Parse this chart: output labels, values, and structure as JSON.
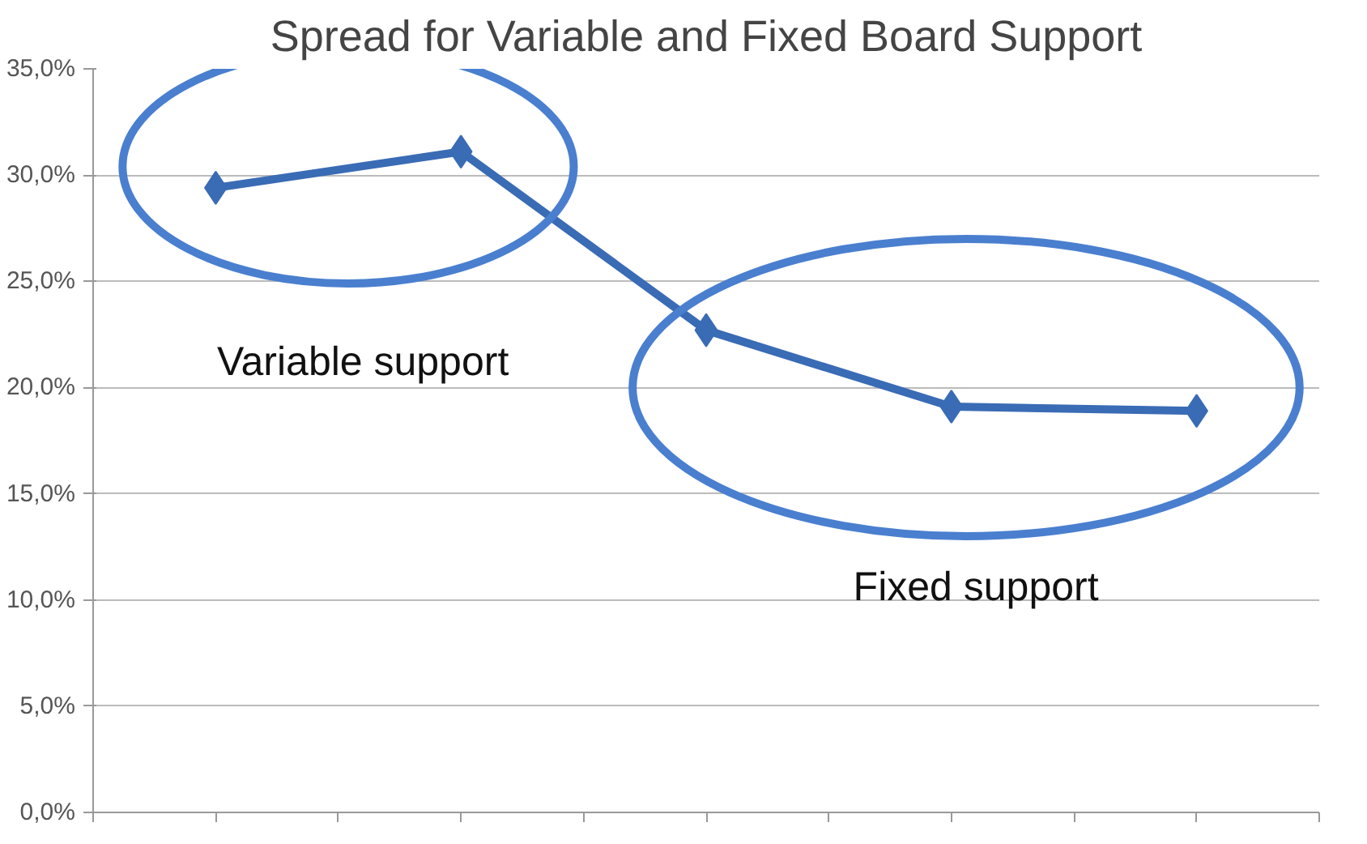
{
  "chart_data": {
    "type": "line",
    "title": "Spread for Variable and Fixed Board Support",
    "categories": [
      null,
      null,
      null,
      null,
      null
    ],
    "series": [
      {
        "color": "#3a6bb5",
        "values": [
          29.4,
          31.1,
          22.7,
          19.1,
          18.9
        ]
      }
    ],
    "ylim": [
      0,
      35
    ],
    "yticks": [
      {
        "value": 0,
        "label": "0,0%"
      },
      {
        "value": 5,
        "label": "5,0%"
      },
      {
        "value": 10,
        "label": "10,0%"
      },
      {
        "value": 15,
        "label": "15,0%"
      },
      {
        "value": 20,
        "label": "20,0%"
      },
      {
        "value": 25,
        "label": "25,0%"
      },
      {
        "value": 30,
        "label": "30,0%"
      },
      {
        "value": 35,
        "label": "35,0%"
      }
    ],
    "grid": "y",
    "marker": "diamond",
    "line_style": "solid",
    "annotations": [
      "Variable support",
      "Fixed support"
    ]
  }
}
